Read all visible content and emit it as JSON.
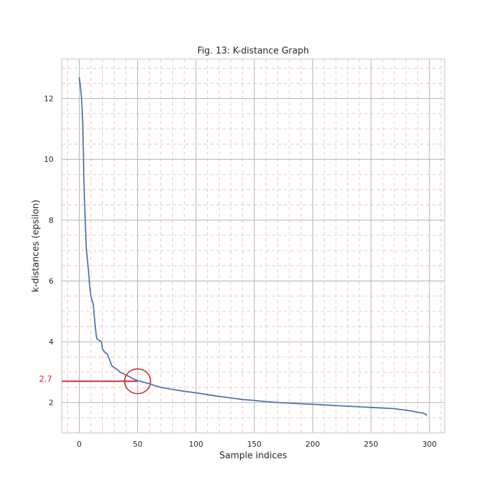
{
  "chart_data": {
    "type": "line",
    "title": "Fig. 13: K-distance Graph",
    "xlabel": "Sample indices",
    "ylabel": "k-distances (epsilon)",
    "xlim": [
      -15,
      313
    ],
    "ylim": [
      1.0,
      13.3
    ],
    "xticks": [
      0,
      50,
      100,
      150,
      200,
      250,
      300
    ],
    "yticks": [
      2,
      4,
      6,
      8,
      10,
      12
    ],
    "grid": true,
    "minor_grid": true,
    "series": [
      {
        "color": "#4c72b0",
        "x": [
          0,
          1,
          2,
          3,
          4,
          5,
          6,
          7,
          8,
          9,
          10,
          11,
          12,
          13,
          14,
          15,
          17,
          19,
          20,
          22,
          24,
          26,
          28,
          30,
          32,
          35,
          38,
          40,
          43,
          45,
          48,
          50,
          55,
          60,
          65,
          70,
          80,
          90,
          100,
          110,
          120,
          130,
          140,
          150,
          160,
          170,
          180,
          190,
          200,
          210,
          220,
          230,
          240,
          250,
          260,
          270,
          275,
          280,
          285,
          290,
          295,
          298
        ],
        "y": [
          12.7,
          12.4,
          12.0,
          11.2,
          9.3,
          8.1,
          7.1,
          6.7,
          6.3,
          5.8,
          5.5,
          5.35,
          5.25,
          4.8,
          4.4,
          4.1,
          4.05,
          4.0,
          3.75,
          3.65,
          3.6,
          3.4,
          3.2,
          3.15,
          3.1,
          3.0,
          2.95,
          2.9,
          2.85,
          2.8,
          2.75,
          2.72,
          2.67,
          2.62,
          2.55,
          2.5,
          2.43,
          2.37,
          2.32,
          2.26,
          2.2,
          2.15,
          2.1,
          2.07,
          2.03,
          2.0,
          1.98,
          1.96,
          1.94,
          1.92,
          1.9,
          1.88,
          1.86,
          1.84,
          1.82,
          1.8,
          1.77,
          1.75,
          1.72,
          1.68,
          1.65,
          1.58
        ]
      }
    ],
    "annotation": {
      "label": "2.7",
      "y": 2.7,
      "x_end": 50,
      "circle_center": [
        50,
        2.7
      ],
      "color": "#d62728"
    }
  }
}
